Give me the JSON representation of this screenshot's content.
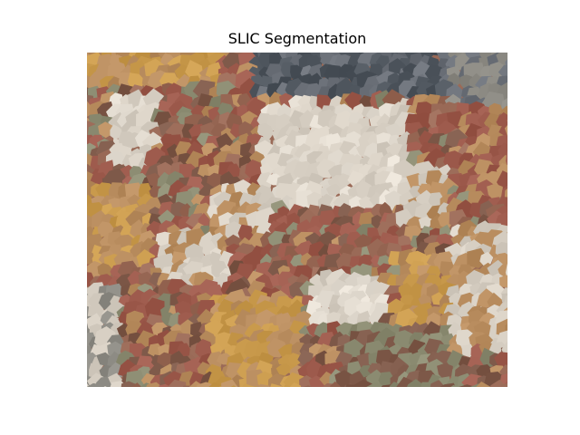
{
  "figure": {
    "title": "SLIC Segmentation"
  },
  "image": {
    "description_kind": "superpixel-segmented-image",
    "colors": {
      "base": "#9a6a57",
      "cream": "#d7cfc3",
      "light_cream": "#e4ddd2",
      "tan": "#b98d5f",
      "ochre": "#c99a4c",
      "rust": "#9d5a4c",
      "brown": "#7f5a4a",
      "olive": "#8c8c72",
      "slate": "#6b7078",
      "dark_slate": "#4e555d",
      "gray": "#8d8b84"
    }
  }
}
